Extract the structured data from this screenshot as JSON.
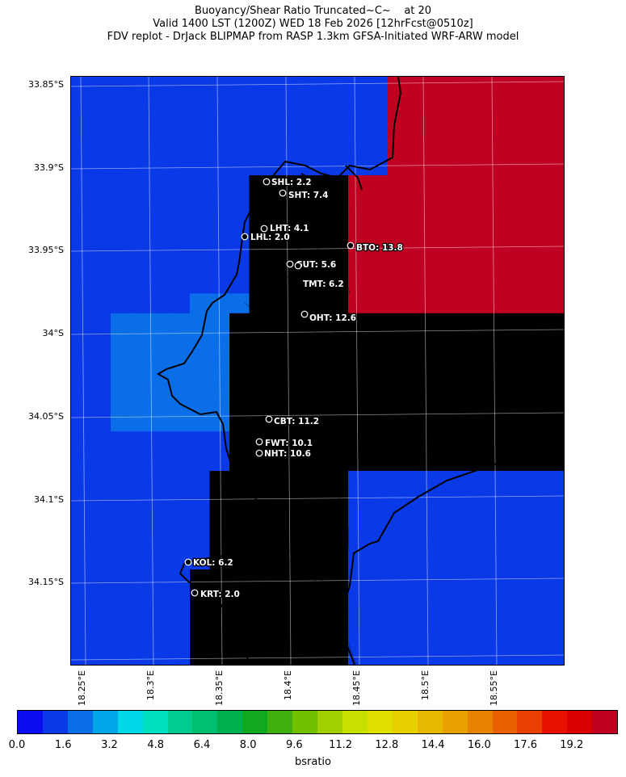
{
  "title": {
    "line1": "Buoyancy/Shear Ratio Truncated~C~    at 20",
    "line2": "Valid 1400 LST (1200Z) WED 18 Feb 2026 [12hrFcst@0510z]",
    "line3": "FDV replot - DrJack BLIPMAP from RASP 1.3km GFSA-Initiated WRF-ARW model"
  },
  "lat_labels": [
    "33.85°S",
    "33.9°S",
    "33.95°S",
    "34°S",
    "34.05°S",
    "34.1°S",
    "34.15°S"
  ],
  "lon_labels": [
    "18.25°E",
    "18.3°E",
    "18.35°E",
    "18.4°E",
    "18.45°E",
    "18.5°E",
    "18.55°E"
  ],
  "colorbar": {
    "label": "bsratio",
    "ticks": [
      "0.0",
      "1.6",
      "3.2",
      "4.8",
      "6.4",
      "8.0",
      "9.6",
      "11.2",
      "12.8",
      "14.4",
      "16.0",
      "17.6",
      "19.2"
    ],
    "colors": [
      "#0a0ef0",
      "#0a3ae8",
      "#0a6ee8",
      "#00a6e8",
      "#00d8e8",
      "#00e0c0",
      "#00cc90",
      "#00c070",
      "#00b050",
      "#10a820",
      "#40b010",
      "#70c000",
      "#a0d000",
      "#c8e000",
      "#e0e000",
      "#e8d000",
      "#e8b800",
      "#e8a000",
      "#e88000",
      "#e86000",
      "#e84000",
      "#e81000",
      "#d80000",
      "#c00020"
    ],
    "background_color": "#0a35e8"
  },
  "stations": [
    {
      "name": "SHL: 2.2"
    },
    {
      "name": "SHT: 7.4"
    },
    {
      "name": "LHT: 4.1"
    },
    {
      "name": "LHL: 2.0"
    },
    {
      "name": "BTO: 13.8"
    },
    {
      "name": "GUT: 5.6"
    },
    {
      "name": "TMT: 6.2"
    },
    {
      "name": "OHT: 12.6"
    },
    {
      "name": "CBT: 11.2"
    },
    {
      "name": "FWT: 10.1"
    },
    {
      "name": "NHT: 10.6"
    },
    {
      "name": "KOL: 6.2"
    },
    {
      "name": "KRT: 2.0"
    }
  ]
}
